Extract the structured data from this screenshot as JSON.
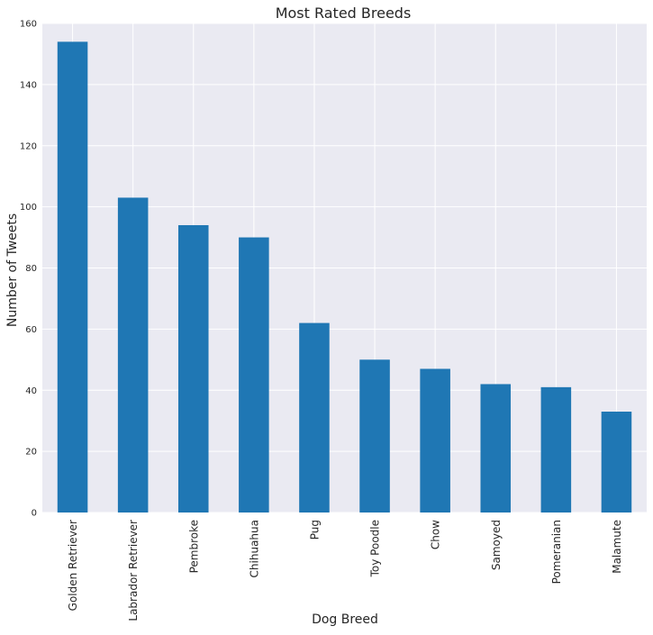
{
  "chart_data": {
    "type": "bar",
    "title": "Most Rated Breeds",
    "xlabel": "Dog Breed",
    "ylabel": "Number of Tweets",
    "categories": [
      "Golden Retriever",
      "Labrador Retriever",
      "Pembroke",
      "Chihuahua",
      "Pug",
      "Toy Poodle",
      "Chow",
      "Samoyed",
      "Pomeranian",
      "Malamute"
    ],
    "values": [
      154,
      103,
      94,
      90,
      62,
      50,
      47,
      42,
      41,
      33
    ],
    "ylim": [
      0,
      160
    ],
    "yticks": [
      0,
      20,
      40,
      60,
      80,
      100,
      120,
      140,
      160
    ],
    "grid": true,
    "legend": "none",
    "colors": {
      "bar": "#1f77b4",
      "plot_background": "#eaeaf2",
      "grid": "#ffffff",
      "text": "#262626"
    }
  }
}
